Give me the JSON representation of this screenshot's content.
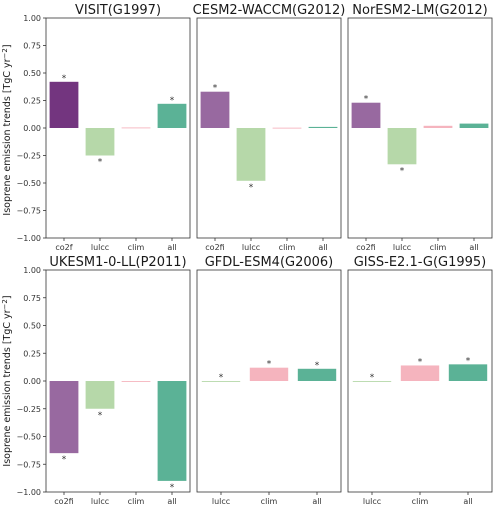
{
  "figure": {
    "ylabel_main": "Isoprene emission trends [TgC yr",
    "ylabel_exp": "−2",
    "ylabel_end": "]"
  },
  "colors": {
    "co2f": "#6c2a78",
    "lulcc": "#b2d6a4",
    "clim": "#f4b0bb",
    "all": "#52ae90"
  },
  "chart_data": [
    {
      "type": "bar",
      "title": "VISIT(G1997)",
      "categories": [
        "co2f",
        "lulcc",
        "clim",
        "all"
      ],
      "keys": [
        "co2f",
        "lulcc",
        "clim",
        "all"
      ],
      "values": [
        0.42,
        -0.25,
        0.005,
        0.22
      ],
      "significant": [
        true,
        true,
        false,
        true
      ],
      "opacity": [
        0.95,
        0.95,
        0.95,
        0.95
      ],
      "ylim": [
        -1.0,
        1.0
      ],
      "yticks": [
        "1.00",
        "0.75",
        "0.50",
        "0.25",
        "0.00",
        "−0.25",
        "−0.50",
        "−0.75",
        "−1.00"
      ]
    },
    {
      "type": "bar",
      "title": "CESM2-WACCM(G2012)",
      "categories": [
        "co2fi",
        "lulcc",
        "clim",
        "all"
      ],
      "keys": [
        "co2f",
        "lulcc",
        "clim",
        "all"
      ],
      "values": [
        0.33,
        -0.48,
        0.003,
        0.01
      ],
      "significant": [
        true,
        true,
        false,
        false
      ],
      "opacity": [
        0.7,
        0.95,
        0.95,
        0.95
      ],
      "ylim": [
        -1.0,
        1.0
      ]
    },
    {
      "type": "bar",
      "title": "NorESM2-LM(G2012)",
      "categories": [
        "co2fi",
        "lulcc",
        "clim",
        "all"
      ],
      "keys": [
        "co2f",
        "lulcc",
        "clim",
        "all"
      ],
      "values": [
        0.23,
        -0.33,
        0.02,
        0.04
      ],
      "significant": [
        true,
        true,
        false,
        false
      ],
      "opacity": [
        0.7,
        0.95,
        0.95,
        0.95
      ],
      "ylim": [
        -1.0,
        1.0
      ]
    },
    {
      "type": "bar",
      "title": "UKESM1-0-LL(P2011)",
      "categories": [
        "co2fi",
        "lulcc",
        "clim",
        "all"
      ],
      "keys": [
        "co2f",
        "lulcc",
        "clim",
        "all"
      ],
      "values": [
        -0.65,
        -0.25,
        0.0,
        -0.9
      ],
      "significant": [
        true,
        true,
        false,
        true
      ],
      "opacity": [
        0.7,
        0.95,
        0.95,
        0.95
      ],
      "ylim": [
        -1.0,
        1.0
      ],
      "yticks": [
        "1.00",
        "0.75",
        "0.50",
        "0.25",
        "0.00",
        "−0.25",
        "−0.50",
        "−0.75",
        "−1.00"
      ]
    },
    {
      "type": "bar",
      "title": "GFDL-ESM4(G2006)",
      "categories": [
        "lulcc",
        "clim",
        "all"
      ],
      "keys": [
        "lulcc",
        "clim",
        "all"
      ],
      "values": [
        0.0,
        0.12,
        0.11
      ],
      "significant": [
        true,
        true,
        true
      ],
      "opacity": [
        0.95,
        0.95,
        0.95
      ],
      "ylim": [
        -1.0,
        1.0
      ]
    },
    {
      "type": "bar",
      "title": "GISS-E2.1-G(G1995)",
      "categories": [
        "lulcc",
        "clim",
        "all"
      ],
      "keys": [
        "lulcc",
        "clim",
        "all"
      ],
      "values": [
        0.0,
        0.14,
        0.15
      ],
      "significant": [
        true,
        true,
        true
      ],
      "opacity": [
        0.95,
        0.95,
        0.95
      ],
      "ylim": [
        -1.0,
        1.0
      ]
    }
  ]
}
